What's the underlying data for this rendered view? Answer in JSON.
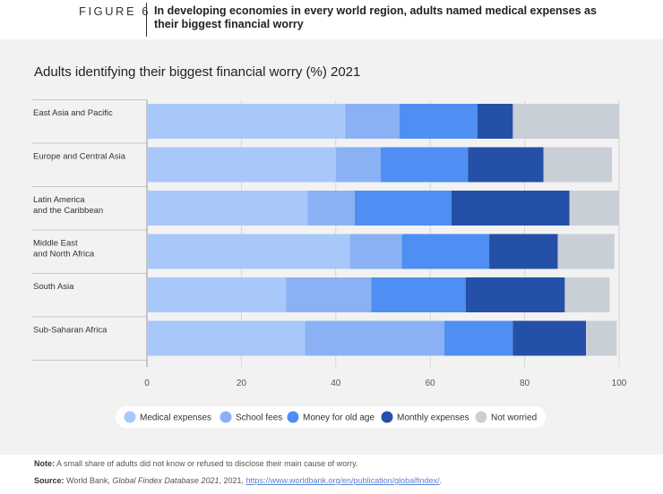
{
  "figure": {
    "label": "FIGURE 6",
    "title": "In developing economies in every world region, adults named medical expenses as their biggest financial worry"
  },
  "chart_data": {
    "type": "bar",
    "orientation": "horizontal",
    "stacked": true,
    "title": "Adults identifying their biggest financial worry (%) 2021",
    "categories": [
      "East Asia and Pacific",
      "Europe and Central Asia",
      "Latin America and the Caribbean",
      "Middle East and North Africa",
      "South Asia",
      "Sub-Saharan Africa"
    ],
    "category_lines": [
      [
        "East Asia and Pacific"
      ],
      [
        "Europe and Central Asia"
      ],
      [
        "Latin America",
        "and the Caribbean"
      ],
      [
        "Middle East",
        "and North Africa"
      ],
      [
        "South Asia"
      ],
      [
        "Sub-Saharan Africa"
      ]
    ],
    "series": [
      {
        "name": "Medical expenses",
        "color": "#a8c8fa",
        "values": [
          42,
          40,
          34,
          43,
          29.5,
          33.5
        ]
      },
      {
        "name": "School fees",
        "color": "#8ab1f4",
        "values": [
          11.5,
          9.5,
          10,
          11,
          18,
          29.5
        ]
      },
      {
        "name": "Money for old age",
        "color": "#4f8ef2",
        "values": [
          16.5,
          18.5,
          20.5,
          18.5,
          20,
          14.5
        ]
      },
      {
        "name": "Monthly expenses",
        "color": "#2450a8",
        "values": [
          7.5,
          16,
          25,
          14.5,
          21,
          15.5
        ]
      },
      {
        "name": "Not worried",
        "color": "#c9cfd7",
        "values": [
          22.5,
          14.5,
          10.5,
          12,
          9.5,
          6.5
        ]
      }
    ],
    "xlim": [
      0,
      100
    ],
    "xticks": [
      0,
      20,
      40,
      60,
      80,
      100
    ],
    "grid": true,
    "legend_position": "bottom"
  },
  "notes": {
    "note_label": "Note:",
    "note_text": " A small share of adults did not know or refused to disclose their main cause of worry.",
    "source_label": "Source:",
    "source_text_1": " World Bank, ",
    "source_italic": "Global Findex Database 2021",
    "source_text_2": ", 2021, ",
    "source_link": "https://www.worldbank.org/en/publication/globalfindex/",
    "source_end": "."
  }
}
